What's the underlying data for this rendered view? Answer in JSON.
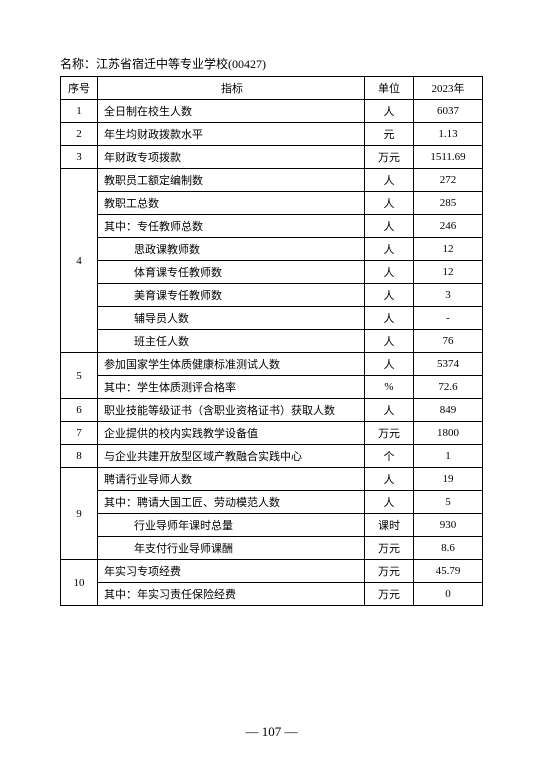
{
  "title": "名称：江苏省宿迁中等专业学校(00427)",
  "page_number": "— 107 —",
  "header": {
    "seq": "序号",
    "indicator": "指标",
    "unit": "单位",
    "year": "2023年"
  },
  "rows": [
    {
      "seq": "1",
      "ind": "全日制在校生人数",
      "unit": "人",
      "val": "6037"
    },
    {
      "seq": "2",
      "ind": "年生均财政拨款水平",
      "unit": "元",
      "val": "1.13"
    },
    {
      "seq": "3",
      "ind": "年财政专项拨款",
      "unit": "万元",
      "val": "1511.69"
    },
    {
      "ind": "教职员工额定编制数",
      "unit": "人",
      "val": "272"
    },
    {
      "ind": "教职工总数",
      "unit": "人",
      "val": "285"
    },
    {
      "ind": "其中：专任教师总数",
      "unit": "人",
      "val": "246"
    },
    {
      "ind": "思政课教师数",
      "sub": true,
      "unit": "人",
      "val": "12"
    },
    {
      "ind": "体育课专任教师数",
      "sub": true,
      "unit": "人",
      "val": "12"
    },
    {
      "ind": "美育课专任教师数",
      "sub": true,
      "unit": "人",
      "val": "3"
    },
    {
      "ind": "辅导员人数",
      "sub": true,
      "unit": "人",
      "val": "-"
    },
    {
      "ind": "班主任人数",
      "sub": true,
      "unit": "人",
      "val": "76"
    },
    {
      "ind": "参加国家学生体质健康标准测试人数",
      "unit": "人",
      "val": "5374"
    },
    {
      "ind": "其中：学生体质测评合格率",
      "unit": "%",
      "val": "72.6"
    },
    {
      "seq": "6",
      "ind": "职业技能等级证书（含职业资格证书）获取人数",
      "unit": "人",
      "val": "849"
    },
    {
      "seq": "7",
      "ind": "企业提供的校内实践教学设备值",
      "unit": "万元",
      "val": "1800"
    },
    {
      "seq": "8",
      "ind": "与企业共建开放型区域产教融合实践中心",
      "unit": "个",
      "val": "1"
    },
    {
      "ind": "聘请行业导师人数",
      "unit": "人",
      "val": "19"
    },
    {
      "ind": "其中：聘请大国工匠、劳动模范人数",
      "unit": "人",
      "val": "5"
    },
    {
      "ind": "行业导师年课时总量",
      "sub": true,
      "unit": "课时",
      "val": "930"
    },
    {
      "ind": "年支付行业导师课酬",
      "sub": true,
      "unit": "万元",
      "val": "8.6"
    },
    {
      "ind": "年实习专项经费",
      "unit": "万元",
      "val": "45.79"
    },
    {
      "ind": "其中：年实习责任保险经费",
      "unit": "万元",
      "val": "0"
    }
  ],
  "group4_seq": "4",
  "group5_seq": "5",
  "group9_seq": "9",
  "group10_seq": "10"
}
